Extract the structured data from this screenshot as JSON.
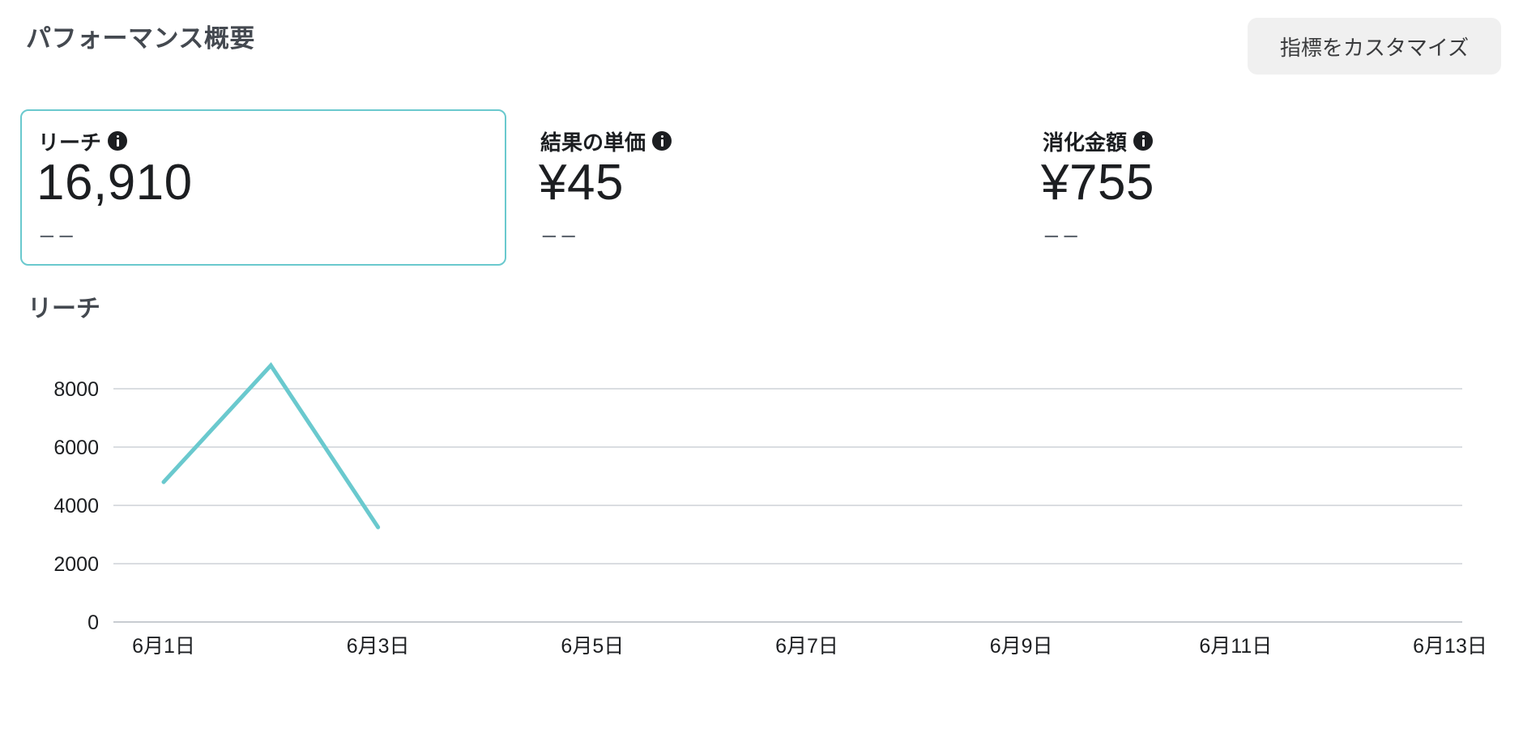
{
  "header": {
    "title": "パフォーマンス概要",
    "customize_label": "指標をカスタマイズ"
  },
  "metrics": [
    {
      "label": "リーチ",
      "value": "16,910",
      "delta": "−−",
      "selected": true
    },
    {
      "label": "結果の単価",
      "value": "¥45",
      "delta": "−−",
      "selected": false
    },
    {
      "label": "消化金額",
      "value": "¥755",
      "delta": "−−",
      "selected": false
    }
  ],
  "colors": {
    "accent": "#6ac9ce",
    "gridline": "#dadde1"
  },
  "icons": {
    "metric_info": "info-icon"
  },
  "chart_data": {
    "type": "line",
    "title": "リーチ",
    "xlabel": "",
    "ylabel": "",
    "x_ticks": [
      "6月1日",
      "6月3日",
      "6月5日",
      "6月7日",
      "6月9日",
      "6月11日",
      "6月13日"
    ],
    "y_ticks": [
      0,
      2000,
      4000,
      6000,
      8000
    ],
    "ylim": [
      0,
      8000
    ],
    "xlim": [
      1,
      13
    ],
    "grid": true,
    "series": [
      {
        "x": [
          1,
          2,
          3
        ],
        "values": [
          4800,
          8800,
          3250
        ]
      }
    ]
  }
}
